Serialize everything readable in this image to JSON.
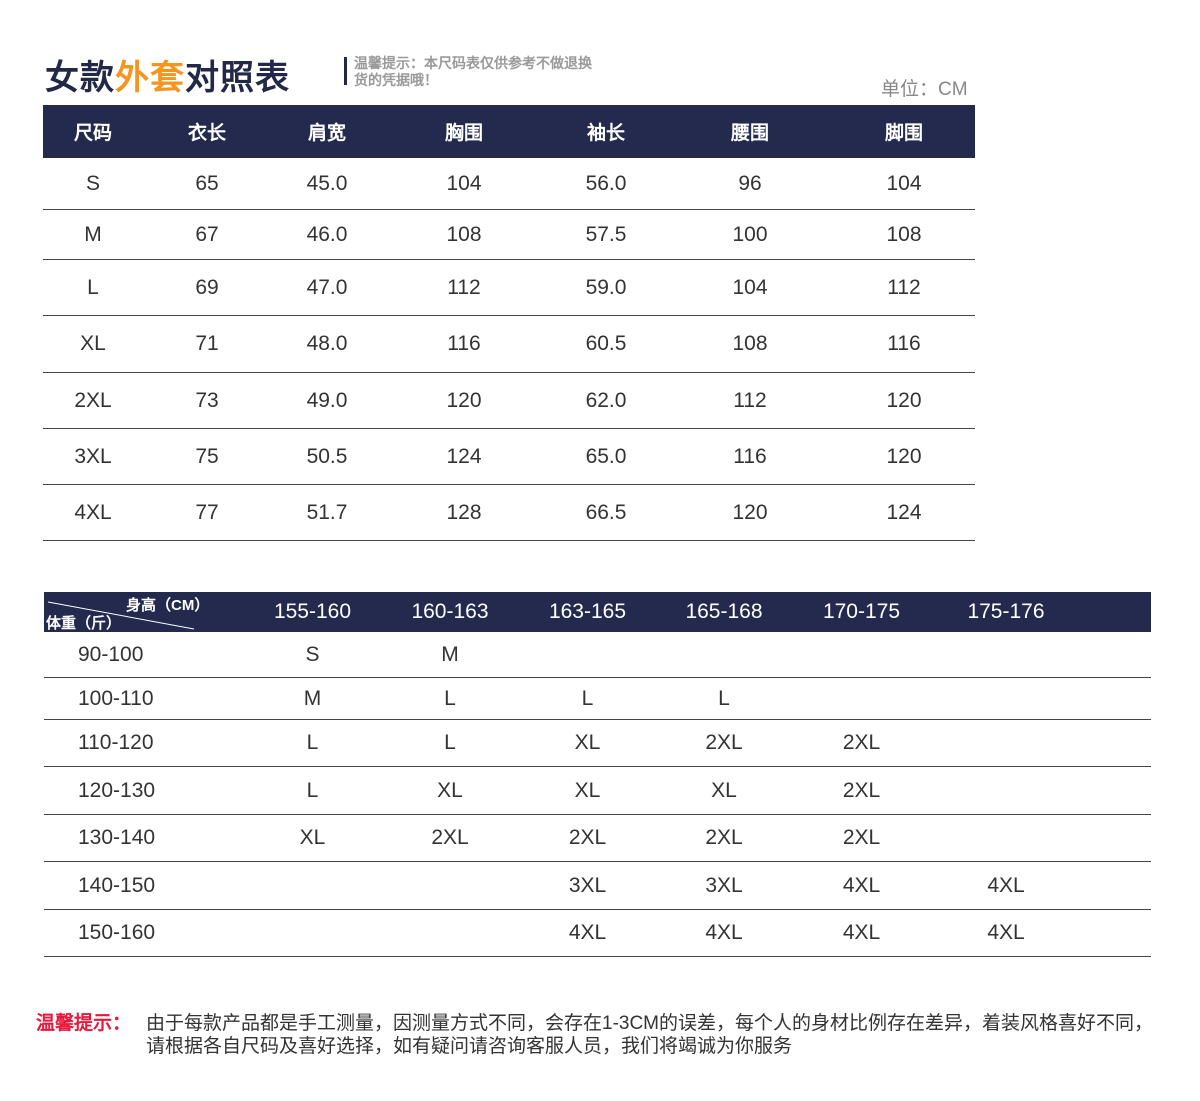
{
  "header": {
    "title_part1": "女款",
    "title_highlight": "外套",
    "title_part2": "对照表",
    "note": "温馨提示：本尺码表仅供参考不做退换货的凭据哦！",
    "unit": "单位：CM"
  },
  "colors": {
    "header_bg": "#232a4e",
    "highlight": "#f7941d",
    "tip_label": "#e8173b"
  },
  "size_table": {
    "columns": [
      "尺码",
      "衣长",
      "肩宽",
      "胸围",
      "袖长",
      "腰围",
      "脚围"
    ],
    "rows": [
      [
        "S",
        "65",
        "45.0",
        "104",
        "56.0",
        "96",
        "104"
      ],
      [
        "M",
        "67",
        "46.0",
        "108",
        "57.5",
        "100",
        "108"
      ],
      [
        "L",
        "69",
        "47.0",
        "112",
        "59.0",
        "104",
        "112"
      ],
      [
        "XL",
        "71",
        "48.0",
        "116",
        "60.5",
        "108",
        "116"
      ],
      [
        "2XL",
        "73",
        "49.0",
        "120",
        "62.0",
        "112",
        "120"
      ],
      [
        "3XL",
        "75",
        "50.5",
        "124",
        "65.0",
        "116",
        "120"
      ],
      [
        "4XL",
        "77",
        "51.7",
        "128",
        "66.5",
        "120",
        "124"
      ]
    ]
  },
  "fit_table": {
    "corner_top": "身高（CM）",
    "corner_bottom": "体重（斤）",
    "columns": [
      "155-160",
      "160-163",
      "163-165",
      "165-168",
      "170-175",
      "175-176"
    ],
    "rows": [
      [
        "90-100",
        "S",
        "M",
        "",
        "",
        "",
        ""
      ],
      [
        "100-110",
        "M",
        "L",
        "L",
        "L",
        "",
        ""
      ],
      [
        "110-120",
        "L",
        "L",
        "XL",
        "2XL",
        "2XL",
        ""
      ],
      [
        "120-130",
        "L",
        "XL",
        "XL",
        "XL",
        "2XL",
        ""
      ],
      [
        "130-140",
        "XL",
        "2XL",
        "2XL",
        "2XL",
        "2XL",
        ""
      ],
      [
        "140-150",
        "",
        "",
        "3XL",
        "3XL",
        "4XL",
        "4XL"
      ],
      [
        "150-160",
        "",
        "",
        "4XL",
        "4XL",
        "4XL",
        "4XL"
      ]
    ]
  },
  "tip": {
    "label": "温馨提示：",
    "text": "由于每款产品都是手工测量，因测量方式不同，会存在1-3CM的误差，每个人的身材比例存在差异，着装风格喜好不同，请根据各自尺码及喜好选择，如有疑问请咨询客服人员，我们将竭诚为你服务"
  }
}
